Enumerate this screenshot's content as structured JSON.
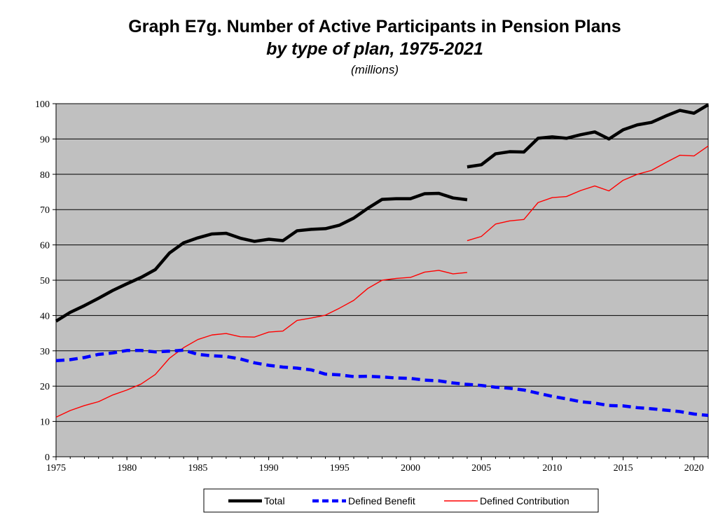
{
  "chart_data": {
    "type": "line",
    "title": "Graph E7g. Number of Active Participants in Pension Plans",
    "subtitle": "by type of plan, 1975-2021",
    "units": "(millions)",
    "xlabel": "",
    "ylabel": "",
    "xlim": [
      1975,
      2021
    ],
    "ylim": [
      0,
      100
    ],
    "grid": true,
    "background_color": "#c0c0c0",
    "legend_position": "bottom",
    "x_ticks": [
      "1975",
      "1980",
      "1985",
      "1990",
      "1995",
      "2000",
      "2005",
      "2010",
      "2015",
      "2020"
    ],
    "y_ticks": [
      "0",
      "10",
      "20",
      "30",
      "40",
      "50",
      "60",
      "70",
      "80",
      "90",
      "100"
    ],
    "series": [
      {
        "name": "Total",
        "color": "#000000",
        "style": "solid-thick",
        "segments": [
          {
            "x": [
              1975,
              1976,
              1977,
              1978,
              1979,
              1980,
              1981,
              1982,
              1983,
              1984,
              1985,
              1986,
              1987,
              1988,
              1989,
              1990,
              1991,
              1992,
              1993,
              1994,
              1995,
              1996,
              1997,
              1998,
              1999,
              2000,
              2001,
              2002,
              2003,
              2004
            ],
            "y": [
              38.4,
              40.9,
              42.8,
              44.9,
              47.1,
              49.0,
              50.8,
              53.0,
              57.7,
              60.6,
              62.0,
              63.1,
              63.3,
              61.9,
              61.0,
              61.6,
              61.2,
              64.0,
              64.4,
              64.6,
              65.6,
              67.6,
              70.4,
              72.9,
              73.1,
              73.1,
              74.5,
              74.6,
              73.3,
              72.8
            ]
          },
          {
            "x": [
              2004,
              2005,
              2006,
              2007,
              2008,
              2009,
              2010,
              2011,
              2012,
              2013,
              2014,
              2015,
              2016,
              2017,
              2018,
              2019,
              2020,
              2021
            ],
            "y": [
              82.1,
              82.7,
              85.8,
              86.4,
              86.3,
              90.2,
              90.6,
              90.2,
              91.2,
              92.0,
              90.0,
              92.6,
              94.0,
              94.7,
              96.5,
              98.1,
              97.3,
              99.7
            ]
          }
        ]
      },
      {
        "name": "Defined Benefit",
        "color": "#0000ff",
        "style": "dashed-thick",
        "segments": [
          {
            "x": [
              1975,
              1976,
              1977,
              1978,
              1979,
              1980,
              1981,
              1982,
              1983,
              1984,
              1985,
              1986,
              1987,
              1988,
              1989,
              1990,
              1991,
              1992,
              1993,
              1994,
              1995,
              1996,
              1997,
              1998,
              1999,
              2000,
              2001,
              2002,
              2003,
              2004,
              2005,
              2006,
              2007,
              2008,
              2009,
              2010,
              2011,
              2012,
              2013,
              2014,
              2015,
              2016,
              2017,
              2018,
              2019,
              2020,
              2021
            ],
            "y": [
              27.2,
              27.5,
              28.1,
              29.0,
              29.4,
              30.1,
              30.1,
              29.7,
              29.9,
              30.2,
              29.0,
              28.6,
              28.4,
              27.7,
              26.6,
              25.9,
              25.4,
              25.1,
              24.6,
              23.4,
              23.2,
              22.7,
              22.8,
              22.6,
              22.3,
              22.2,
              21.7,
              21.5,
              20.9,
              20.5,
              20.2,
              19.7,
              19.4,
              18.9,
              18.0,
              17.1,
              16.4,
              15.6,
              15.2,
              14.5,
              14.4,
              13.9,
              13.6,
              13.2,
              12.8,
              12.1,
              11.7
            ]
          }
        ]
      },
      {
        "name": "Defined Contribution",
        "color": "#ff0000",
        "style": "solid-thin",
        "segments": [
          {
            "x": [
              1975,
              1976,
              1977,
              1978,
              1979,
              1980,
              1981,
              1982,
              1983,
              1984,
              1985,
              1986,
              1987,
              1988,
              1989,
              1990,
              1991,
              1992,
              1993,
              1994,
              1995,
              1996,
              1997,
              1998,
              1999,
              2000,
              2001,
              2002,
              2003,
              2004
            ],
            "y": [
              11.2,
              13.1,
              14.5,
              15.6,
              17.5,
              18.9,
              20.6,
              23.3,
              27.9,
              30.9,
              33.2,
              34.5,
              34.9,
              34.0,
              33.9,
              35.3,
              35.6,
              38.6,
              39.3,
              40.1,
              42.1,
              44.3,
              47.7,
              50.0,
              50.5,
              50.8,
              52.3,
              52.8,
              51.8,
              52.2
            ]
          },
          {
            "x": [
              2004,
              2005,
              2006,
              2007,
              2008,
              2009,
              2010,
              2011,
              2012,
              2013,
              2014,
              2015,
              2016,
              2017,
              2018,
              2019,
              2020,
              2021
            ],
            "y": [
              61.2,
              62.4,
              65.9,
              66.8,
              67.2,
              72.0,
              73.4,
              73.7,
              75.4,
              76.7,
              75.3,
              78.3,
              80.0,
              81.1,
              83.3,
              85.4,
              85.2,
              88.0
            ]
          }
        ]
      }
    ]
  }
}
